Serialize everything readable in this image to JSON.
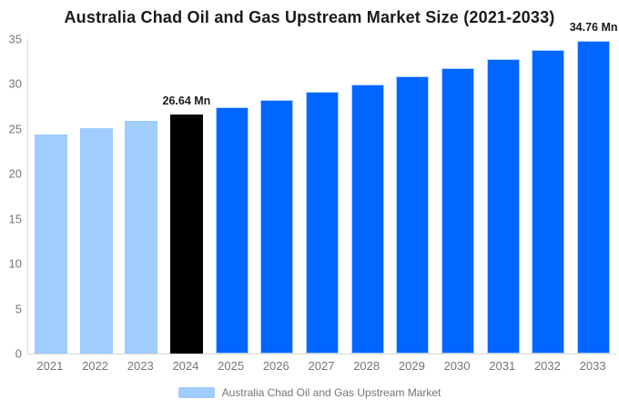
{
  "title": "Australia Chad Oil and Gas Upstream Market Size (2021-2033)",
  "legend": {
    "label": "Australia Chad Oil and Gas Upstream Market",
    "swatch_color": "#A0CCFF"
  },
  "colors": {
    "historical_bar": "#A0CCFF",
    "base_year_bar": "#000000",
    "forecast_bar": "#0066FF",
    "forecast_bar_border": "#A9D1FF",
    "axis_line": "#D9D9D9",
    "axis_text": "#757575",
    "title_text": "#1A1A1A",
    "annotation_text": "#1A1A1A",
    "background": "#FFFFFF"
  },
  "chart_data": {
    "type": "bar",
    "title": "Australia Chad Oil and Gas Upstream Market Size (2021-2033)",
    "categories": [
      "2021",
      "2022",
      "2023",
      "2024",
      "2025",
      "2026",
      "2027",
      "2028",
      "2029",
      "2030",
      "2031",
      "2032",
      "2033"
    ],
    "values": [
      24.38,
      25.11,
      25.86,
      26.64,
      27.44,
      28.26,
      29.11,
      29.98,
      30.88,
      31.81,
      32.76,
      33.75,
      34.76
    ],
    "unit": "Mn",
    "bar_colors": [
      "#A0CCFF",
      "#A0CCFF",
      "#A0CCFF",
      "#000000",
      "#0066FF",
      "#0066FF",
      "#0066FF",
      "#0066FF",
      "#0066FF",
      "#0066FF",
      "#0066FF",
      "#0066FF",
      "#0066FF"
    ],
    "annotations": [
      {
        "category": "2024",
        "text": "26.64 Mn"
      },
      {
        "category": "2033",
        "text": "34.76 Mn"
      }
    ],
    "y_ticks": [
      0,
      5,
      10,
      15,
      20,
      25,
      30,
      35
    ],
    "ylim": [
      0,
      35
    ],
    "xlabel": "",
    "ylabel": "",
    "grid": false,
    "legend_position": "bottom",
    "legend_entries": [
      "Australia Chad Oil and Gas Upstream Market"
    ]
  }
}
